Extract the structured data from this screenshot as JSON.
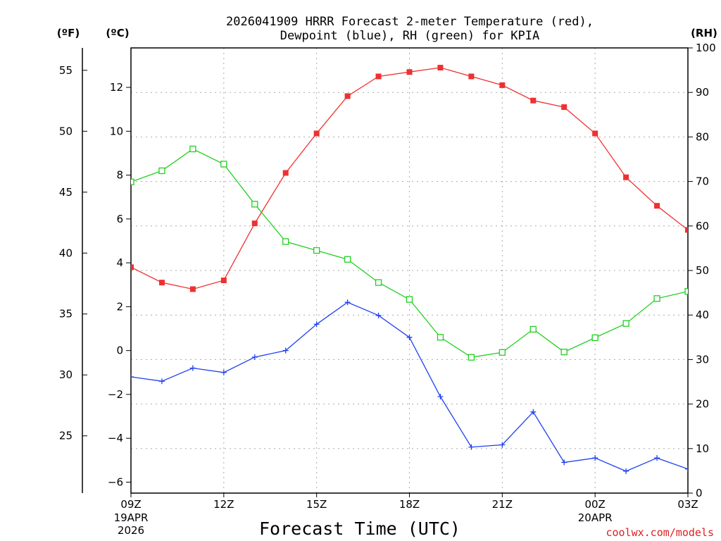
{
  "chart_data": {
    "type": "line",
    "title_line1": "2026041909 HRRR Forecast 2-meter Temperature (red),",
    "title_line2": "Dewpoint (blue), RH (green) for KPIA",
    "xlabel": "Forecast Time (UTC)",
    "credit": "coolwx.com/models",
    "units": {
      "f": "(ºF)",
      "c": "(ºC)",
      "rh": "(RH)"
    },
    "x_hours": [
      0,
      1,
      2,
      3,
      4,
      5,
      6,
      7,
      8,
      9,
      10,
      11,
      12,
      13,
      14,
      15,
      16,
      17,
      18
    ],
    "x_ticks": [
      {
        "hour": 0,
        "label": "09Z",
        "sub1": "19APR",
        "sub2": "2026"
      },
      {
        "hour": 3,
        "label": "12Z",
        "sub1": "",
        "sub2": ""
      },
      {
        "hour": 6,
        "label": "15Z",
        "sub1": "",
        "sub2": ""
      },
      {
        "hour": 9,
        "label": "18Z",
        "sub1": "",
        "sub2": ""
      },
      {
        "hour": 12,
        "label": "21Z",
        "sub1": "",
        "sub2": ""
      },
      {
        "hour": 15,
        "label": "00Z",
        "sub1": "20APR",
        "sub2": ""
      },
      {
        "hour": 18,
        "label": "03Z",
        "sub1": "",
        "sub2": ""
      }
    ],
    "celsius_axis": {
      "range": [
        -6.5,
        13.8
      ],
      "ticks": [
        "-6",
        "-4",
        "-2",
        "0",
        "2",
        "4",
        "6",
        "8",
        "10",
        "12"
      ]
    },
    "fahrenheit_axis": {
      "ticks": [
        "25",
        "30",
        "35",
        "40",
        "45",
        "50",
        "55"
      ]
    },
    "rh_axis": {
      "range": [
        0,
        100
      ],
      "ticks": [
        "0",
        "10",
        "20",
        "30",
        "40",
        "50",
        "60",
        "70",
        "80",
        "90",
        "100"
      ]
    },
    "series": [
      {
        "name": "Temperature",
        "unit": "C",
        "color": "#f03030",
        "marker": "filled-square",
        "values": [
          3.8,
          3.1,
          2.8,
          3.2,
          5.8,
          8.1,
          9.9,
          11.6,
          12.5,
          12.7,
          12.9,
          12.5,
          12.1,
          11.4,
          11.1,
          9.9,
          7.9,
          6.6,
          5.5
        ]
      },
      {
        "name": "Dewpoint",
        "unit": "C",
        "color": "#2040f0",
        "marker": "plus",
        "values": [
          -1.2,
          -1.4,
          -0.8,
          -1.0,
          -0.3,
          0.0,
          1.2,
          2.2,
          1.6,
          0.6,
          -2.1,
          -4.4,
          -4.3,
          -2.8,
          -5.1,
          -4.9,
          -5.5,
          -4.9,
          -5.4
        ]
      },
      {
        "name": "RH",
        "unit": "%",
        "color": "#20d020",
        "marker": "open-square",
        "values": [
          69.9,
          72.4,
          77.3,
          73.9,
          64.9,
          56.5,
          54.5,
          52.5,
          47.3,
          43.5,
          35.0,
          30.5,
          31.6,
          36.8,
          31.7,
          34.9,
          38.1,
          43.7,
          45.3
        ]
      }
    ]
  }
}
